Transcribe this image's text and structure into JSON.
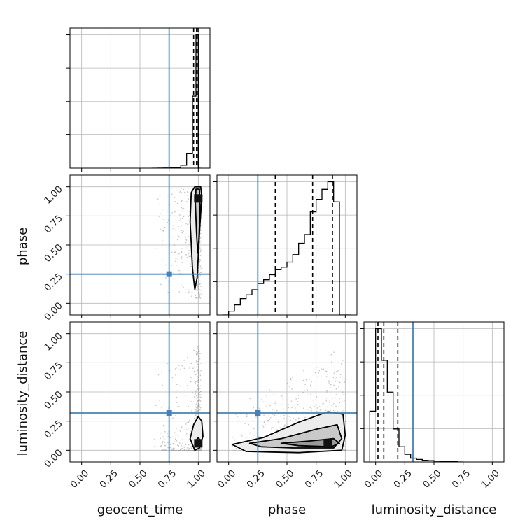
{
  "chart_data": {
    "type": "corner",
    "parameters": [
      "geocent_time",
      "phase",
      "luminosity_distance"
    ],
    "axis_range": [
      -0.1,
      1.1
    ],
    "ticks": [
      0.0,
      0.25,
      0.5,
      0.75,
      1.0
    ],
    "tick_labels": [
      "0.00",
      "0.25",
      "0.50",
      "0.75",
      "1.00"
    ],
    "truths": [
      0.75,
      0.25,
      0.32
    ],
    "truth_color": "#4682b4",
    "grid": true,
    "histograms": [
      {
        "parameter": "geocent_time",
        "bins": [
          0.6,
          0.65,
          0.7,
          0.75,
          0.8,
          0.85,
          0.9,
          0.95,
          0.98,
          1.0,
          1.02
        ],
        "counts": [
          0,
          1,
          2,
          4,
          10,
          40,
          200,
          1000,
          1850,
          0
        ],
        "quantiles": [
          0.96,
          0.985,
          0.998
        ]
      },
      {
        "parameter": "phase",
        "bins": [
          -0.05,
          0.0,
          0.05,
          0.1,
          0.15,
          0.2,
          0.25,
          0.3,
          0.35,
          0.4,
          0.45,
          0.5,
          0.55,
          0.6,
          0.65,
          0.7,
          0.75,
          0.8,
          0.85,
          0.9,
          0.95,
          1.0,
          1.05
        ],
        "counts": [
          0,
          3,
          8,
          13,
          16,
          20,
          25,
          28,
          32,
          36,
          38,
          42,
          48,
          57,
          64,
          82,
          92,
          100,
          106,
          90,
          0,
          0
        ],
        "quantiles": [
          0.4,
          0.72,
          0.89
        ]
      },
      {
        "parameter": "luminosity_distance",
        "bins": [
          -0.05,
          0.0,
          0.05,
          0.1,
          0.15,
          0.2,
          0.25,
          0.3,
          0.35,
          0.4,
          0.45,
          0.5,
          0.55,
          0.6,
          0.65,
          0.7,
          0.75
        ],
        "counts": [
          40,
          105,
          80,
          55,
          26,
          12,
          6,
          3,
          2,
          1.3,
          1,
          0.7,
          0.4,
          0.3,
          0.2,
          0
        ],
        "quantiles": [
          0.02,
          0.07,
          0.19
        ]
      }
    ],
    "panels_2d": [
      {
        "x": "geocent_time",
        "y": "phase",
        "peak": [
          1.0,
          0.9
        ],
        "contours": [
          [
            [
              0.94,
              0.95
            ],
            [
              0.97,
              1.0
            ],
            [
              1.02,
              1.0
            ],
            [
              1.03,
              0.92
            ],
            [
              1.01,
              0.6
            ],
            [
              0.99,
              0.22
            ],
            [
              0.97,
              0.12
            ],
            [
              0.95,
              0.3
            ],
            [
              0.93,
              0.7
            ]
          ],
          [
            [
              0.98,
              0.98
            ],
            [
              1.01,
              0.98
            ],
            [
              1.015,
              0.8
            ],
            [
              1.005,
              0.55
            ],
            [
              0.995,
              0.43
            ],
            [
              0.985,
              0.6
            ],
            [
              0.975,
              0.85
            ]
          ]
        ]
      },
      {
        "x": "geocent_time",
        "y": "luminosity_distance",
        "peak": [
          1.0,
          0.06
        ],
        "contours": [
          [
            [
              0.93,
              0.1
            ],
            [
              0.96,
              0.22
            ],
            [
              1.0,
              0.29
            ],
            [
              1.03,
              0.25
            ],
            [
              1.04,
              0.12
            ],
            [
              1.01,
              0.02
            ],
            [
              0.97,
              0.0
            ]
          ],
          [
            [
              0.97,
              0.07
            ],
            [
              1.0,
              0.11
            ],
            [
              1.02,
              0.08
            ],
            [
              1.01,
              0.03
            ],
            [
              0.98,
              0.03
            ]
          ]
        ]
      },
      {
        "x": "phase",
        "y": "luminosity_distance",
        "peak": [
          0.85,
          0.06
        ],
        "contours": [
          [
            [
              0.03,
              0.05
            ],
            [
              0.3,
              0.11
            ],
            [
              0.6,
              0.24
            ],
            [
              0.85,
              0.33
            ],
            [
              0.98,
              0.31
            ],
            [
              1.0,
              0.13
            ],
            [
              0.97,
              0.0
            ],
            [
              0.6,
              -0.02
            ],
            [
              0.15,
              -0.01
            ]
          ],
          [
            [
              0.18,
              0.06
            ],
            [
              0.45,
              0.1
            ],
            [
              0.75,
              0.18
            ],
            [
              0.93,
              0.22
            ],
            [
              0.97,
              0.1
            ],
            [
              0.9,
              0.02
            ],
            [
              0.55,
              0.02
            ],
            [
              0.28,
              0.03
            ]
          ],
          [
            [
              0.45,
              0.06
            ],
            [
              0.7,
              0.08
            ],
            [
              0.9,
              0.1
            ],
            [
              0.95,
              0.06
            ],
            [
              0.88,
              0.03
            ],
            [
              0.6,
              0.04
            ]
          ]
        ]
      }
    ]
  }
}
